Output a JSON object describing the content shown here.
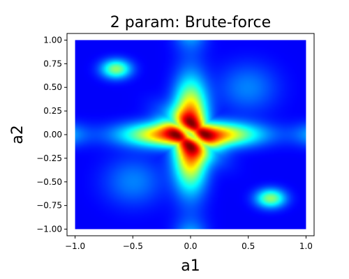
{
  "chart_data": {
    "type": "heatmap",
    "title": "2 param:  Brute-force",
    "xlabel": "a1",
    "ylabel": "a2",
    "xlim": [
      -1.07,
      1.07
    ],
    "ylim": [
      -1.07,
      1.07
    ],
    "data_range": [
      -1.0,
      1.0
    ],
    "colormap": "jet",
    "grid": false,
    "x_ticks": [
      {
        "value": -1.0,
        "label": "−1.0"
      },
      {
        "value": -0.5,
        "label": "−0.5"
      },
      {
        "value": 0.0,
        "label": "0.0"
      },
      {
        "value": 0.5,
        "label": "0.5"
      },
      {
        "value": 1.0,
        "label": "1.0"
      }
    ],
    "y_ticks": [
      {
        "value": 1.0,
        "label": "1.00"
      },
      {
        "value": 0.75,
        "label": "0.75"
      },
      {
        "value": 0.5,
        "label": "0.50"
      },
      {
        "value": 0.25,
        "label": "0.25"
      },
      {
        "value": 0.0,
        "label": "0.00"
      },
      {
        "value": -0.25,
        "label": "−0.25"
      },
      {
        "value": -0.5,
        "label": "−0.50"
      },
      {
        "value": -0.75,
        "label": "−0.75"
      },
      {
        "value": -1.0,
        "label": "−1.00"
      }
    ],
    "features": [
      {
        "name": "vertical-ridge",
        "shape": "band",
        "at": 0.0,
        "value": 1.0
      },
      {
        "name": "horizontal-ridge",
        "shape": "band",
        "at": 0.0,
        "value": 1.0
      },
      {
        "name": "center-valley",
        "center": [
          0.0,
          0.0
        ],
        "value": 0.0
      },
      {
        "name": "peak-upper-left",
        "center": [
          -0.65,
          0.7
        ],
        "value": 0.5
      },
      {
        "name": "peak-lower-right",
        "center": [
          0.7,
          -0.68
        ],
        "value": 0.5
      }
    ]
  }
}
